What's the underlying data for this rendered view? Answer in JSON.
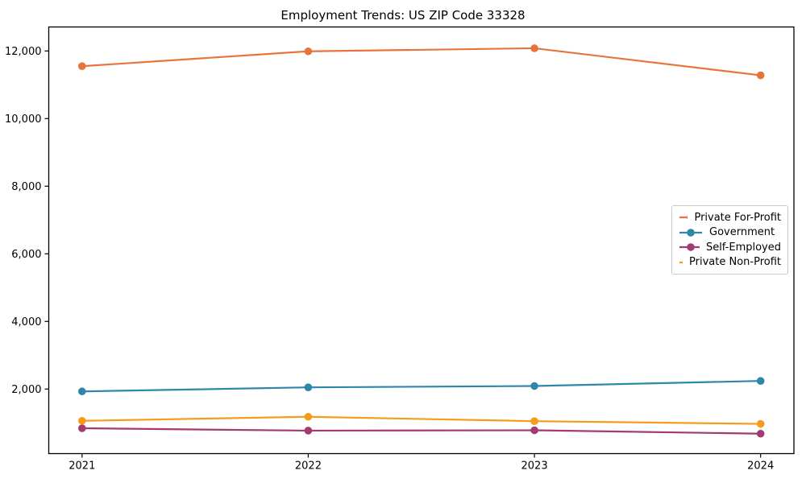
{
  "chart_data": {
    "type": "line",
    "title": "Employment Trends: US ZIP Code 33328",
    "x": [
      2021,
      2022,
      2023,
      2024
    ],
    "series": [
      {
        "name": "Private For-Profit",
        "color": "#e8743b",
        "values": [
          11550,
          11990,
          12080,
          11280
        ]
      },
      {
        "name": "Government",
        "color": "#2e86ab",
        "values": [
          1930,
          2050,
          2090,
          2240
        ]
      },
      {
        "name": "Self-Employed",
        "color": "#a23b72",
        "values": [
          840,
          770,
          780,
          680
        ]
      },
      {
        "name": "Private Non-Profit",
        "color": "#f49d1a",
        "values": [
          1060,
          1180,
          1050,
          970
        ]
      }
    ],
    "xlabel": "",
    "ylabel": "",
    "ylim": [
      90,
      12710
    ],
    "yticks": [
      2000,
      4000,
      6000,
      8000,
      10000,
      12000
    ],
    "grid": false,
    "legend_position": "right-center",
    "axis_color": "#000000"
  }
}
